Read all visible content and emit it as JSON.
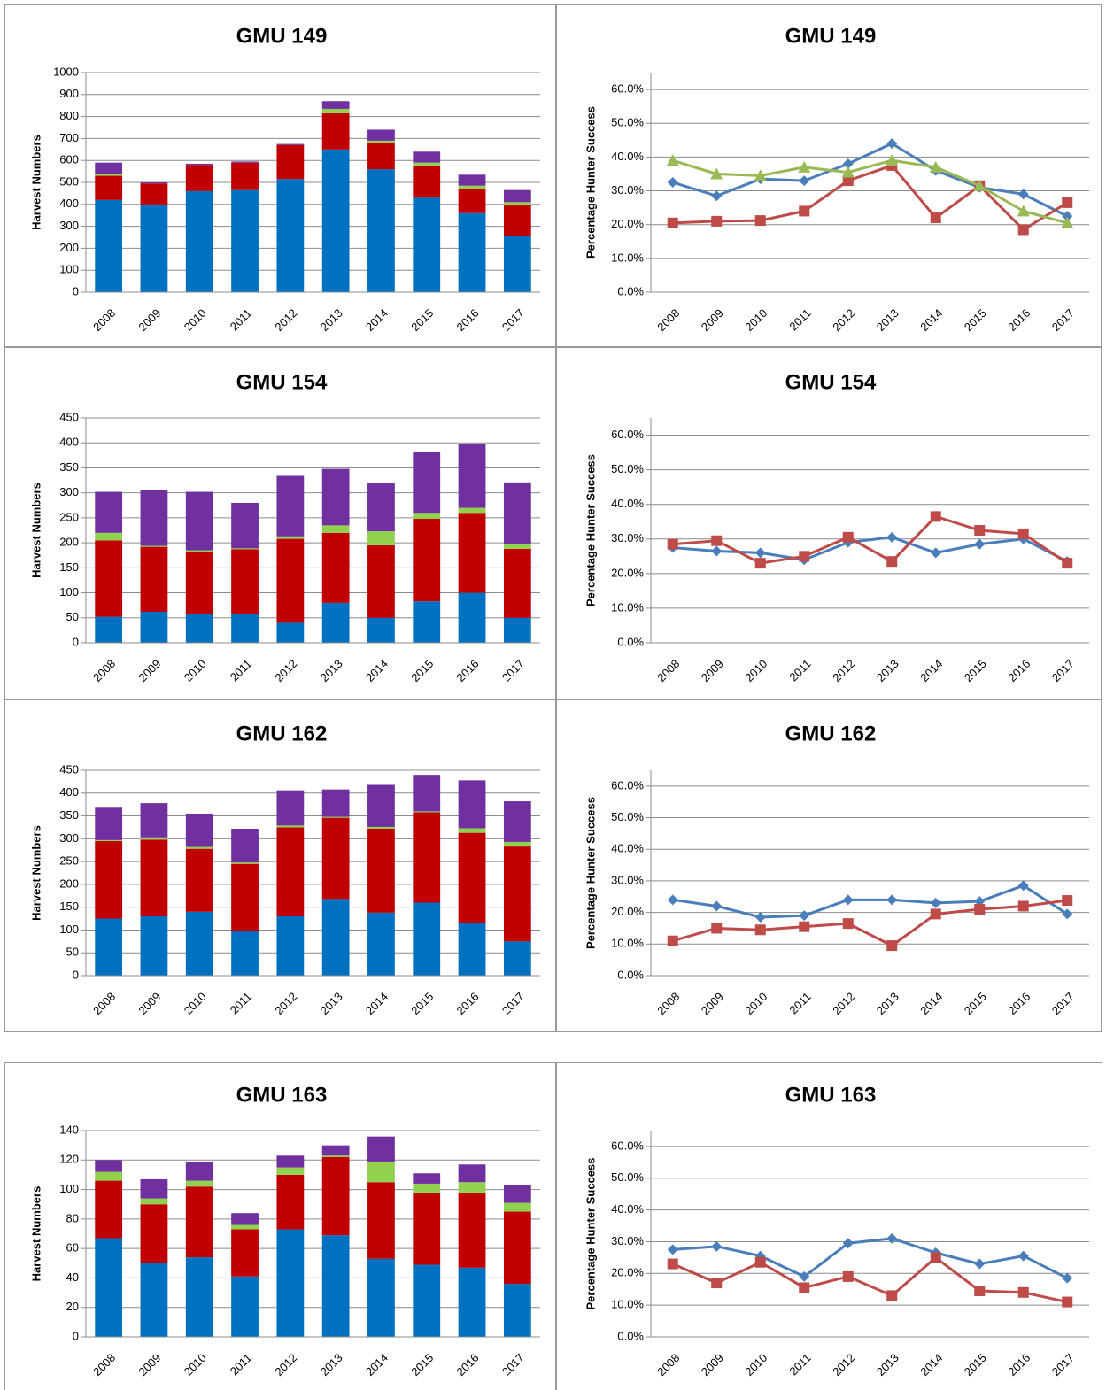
{
  "chart_data": [
    {
      "type": "bar",
      "stacked": true,
      "title": "GMU 149",
      "y_label": "Harvest Numbers",
      "categories": [
        "2008",
        "2009",
        "2010",
        "2011",
        "2012",
        "2013",
        "2014",
        "2015",
        "2016",
        "2017"
      ],
      "series": [
        {
          "color": "#0070c0",
          "values": [
            420,
            400,
            460,
            465,
            515,
            650,
            560,
            430,
            360,
            255
          ]
        },
        {
          "color": "#c00000",
          "values": [
            110,
            95,
            120,
            125,
            155,
            165,
            120,
            145,
            110,
            140
          ]
        },
        {
          "color": "#92d050",
          "values": [
            10,
            0,
            0,
            0,
            0,
            20,
            10,
            15,
            15,
            15
          ]
        },
        {
          "color": "#7030a0",
          "values": [
            50,
            5,
            5,
            5,
            5,
            35,
            50,
            50,
            50,
            55
          ]
        }
      ],
      "ylim": [
        0,
        1000
      ],
      "yticks": [
        0,
        100,
        200,
        300,
        400,
        500,
        600,
        700,
        800,
        900,
        1000
      ],
      "grid": true
    },
    {
      "type": "line",
      "title": "GMU 149",
      "y_label": "Percentage Hunter Success",
      "categories": [
        "2008",
        "2009",
        "2010",
        "2011",
        "2012",
        "2013",
        "2014",
        "2015",
        "2016",
        "2017"
      ],
      "series": [
        {
          "color": "#4a7ebb",
          "marker": "diamond",
          "values": [
            32.5,
            28.5,
            33.5,
            33,
            38,
            44,
            36,
            31,
            29,
            22.5
          ]
        },
        {
          "color": "#be4b48",
          "marker": "square",
          "values": [
            20.5,
            21,
            21.2,
            24,
            33,
            37.5,
            22,
            31.5,
            18.5,
            26.5
          ]
        },
        {
          "color": "#98b954",
          "marker": "triangle",
          "values": [
            39,
            35,
            34.5,
            37,
            35.5,
            39,
            37,
            31.5,
            24,
            20.5
          ]
        }
      ],
      "ylim": [
        0,
        65
      ],
      "yticks": [
        {
          "value": 0,
          "label": "0.0%"
        },
        {
          "value": 10,
          "label": "10.0%"
        },
        {
          "value": 20,
          "label": "20.0%"
        },
        {
          "value": 30,
          "label": "30.0%"
        },
        {
          "value": 40,
          "label": "40.0%"
        },
        {
          "value": 50,
          "label": "50.0%"
        },
        {
          "value": 60,
          "label": "60.0%"
        }
      ],
      "grid": true
    },
    {
      "type": "bar",
      "stacked": true,
      "title": "GMU 154",
      "y_label": "Harvest Numbers",
      "categories": [
        "2008",
        "2009",
        "2010",
        "2011",
        "2012",
        "2013",
        "2014",
        "2015",
        "2016",
        "2017"
      ],
      "series": [
        {
          "color": "#0070c0",
          "values": [
            52,
            62,
            58,
            58,
            40,
            80,
            50,
            83,
            100,
            50
          ]
        },
        {
          "color": "#c00000",
          "values": [
            153,
            130,
            124,
            129,
            168,
            140,
            145,
            165,
            160,
            138
          ]
        },
        {
          "color": "#92d050",
          "values": [
            15,
            2,
            3,
            2,
            5,
            15,
            28,
            12,
            10,
            10
          ]
        },
        {
          "color": "#7030a0",
          "values": [
            82,
            111,
            117,
            91,
            121,
            113,
            97,
            122,
            127,
            123
          ]
        }
      ],
      "ylim": [
        0,
        450
      ],
      "yticks": [
        0,
        50,
        100,
        150,
        200,
        250,
        300,
        350,
        400,
        450
      ],
      "grid": true
    },
    {
      "type": "line",
      "title": "GMU 154",
      "y_label": "Percentage Hunter Success",
      "categories": [
        "2008",
        "2009",
        "2010",
        "2011",
        "2012",
        "2013",
        "2014",
        "2015",
        "2016",
        "2017"
      ],
      "series": [
        {
          "color": "#4a7ebb",
          "marker": "diamond",
          "values": [
            27.5,
            26.5,
            26,
            24,
            29,
            30.5,
            26,
            28.5,
            30,
            23.5
          ]
        },
        {
          "color": "#be4b48",
          "marker": "square",
          "values": [
            28.5,
            29.5,
            23,
            25,
            30.5,
            23.5,
            36.5,
            32.5,
            31.5,
            23
          ]
        }
      ],
      "ylim": [
        0,
        65
      ],
      "yticks": [
        {
          "value": 0,
          "label": "0.0%"
        },
        {
          "value": 10,
          "label": "10.0%"
        },
        {
          "value": 20,
          "label": "20.0%"
        },
        {
          "value": 30,
          "label": "30.0%"
        },
        {
          "value": 40,
          "label": "40.0%"
        },
        {
          "value": 50,
          "label": "50.0%"
        },
        {
          "value": 60,
          "label": "60.0%"
        }
      ],
      "grid": true
    },
    {
      "type": "bar",
      "stacked": true,
      "title": "GMU 162",
      "y_label": "Harvest Numbers",
      "categories": [
        "2008",
        "2009",
        "2010",
        "2011",
        "2012",
        "2013",
        "2014",
        "2015",
        "2016",
        "2017"
      ],
      "series": [
        {
          "color": "#0070c0",
          "values": [
            125,
            130,
            140,
            97,
            130,
            168,
            138,
            160,
            115,
            75
          ]
        },
        {
          "color": "#c00000",
          "values": [
            170,
            168,
            138,
            148,
            195,
            178,
            184,
            198,
            198,
            208
          ]
        },
        {
          "color": "#92d050",
          "values": [
            2,
            5,
            4,
            3,
            4,
            2,
            4,
            2,
            10,
            10
          ]
        },
        {
          "color": "#7030a0",
          "values": [
            71,
            75,
            73,
            74,
            77,
            60,
            92,
            80,
            105,
            89
          ]
        }
      ],
      "ylim": [
        0,
        450
      ],
      "yticks": [
        0,
        50,
        100,
        150,
        200,
        250,
        300,
        350,
        400,
        450
      ],
      "grid": true
    },
    {
      "type": "line",
      "title": "GMU 162",
      "y_label": "Percentage Hunter Success",
      "categories": [
        "2008",
        "2009",
        "2010",
        "2011",
        "2012",
        "2013",
        "2014",
        "2015",
        "2016",
        "2017"
      ],
      "series": [
        {
          "color": "#4a7ebb",
          "marker": "diamond",
          "values": [
            24,
            22,
            18.5,
            19,
            24,
            24,
            23,
            23.5,
            28.5,
            19.5
          ]
        },
        {
          "color": "#be4b48",
          "marker": "square",
          "values": [
            11,
            15,
            14.5,
            15.5,
            16.5,
            9.5,
            19.5,
            21,
            22,
            23.8
          ]
        }
      ],
      "ylim": [
        0,
        65
      ],
      "yticks": [
        {
          "value": 0,
          "label": "0.0%"
        },
        {
          "value": 10,
          "label": "10.0%"
        },
        {
          "value": 20,
          "label": "20.0%"
        },
        {
          "value": 30,
          "label": "30.0%"
        },
        {
          "value": 40,
          "label": "40.0%"
        },
        {
          "value": 50,
          "label": "50.0%"
        },
        {
          "value": 60,
          "label": "60.0%"
        }
      ],
      "grid": true
    },
    {
      "type": "bar",
      "stacked": true,
      "title": "GMU 163",
      "y_label": "Harvest Numbers",
      "categories": [
        "2008",
        "2009",
        "2010",
        "2011",
        "2012",
        "2013",
        "2014",
        "2015",
        "2016",
        "2017"
      ],
      "series": [
        {
          "color": "#0070c0",
          "values": [
            67,
            50,
            54,
            41,
            73,
            69,
            53,
            49,
            47,
            36
          ]
        },
        {
          "color": "#c00000",
          "values": [
            39,
            40,
            48,
            32,
            37,
            53,
            52,
            49,
            51,
            49
          ]
        },
        {
          "color": "#92d050",
          "values": [
            6,
            4,
            4,
            3,
            5,
            1,
            14,
            6,
            7,
            6
          ]
        },
        {
          "color": "#7030a0",
          "values": [
            8,
            13,
            13,
            8,
            8,
            7,
            17,
            7,
            12,
            12
          ]
        }
      ],
      "ylim": [
        0,
        140
      ],
      "yticks": [
        0,
        20,
        40,
        60,
        80,
        100,
        120,
        140
      ],
      "grid": true
    },
    {
      "type": "line",
      "title": "GMU 163",
      "y_label": "Percentage Hunter Success",
      "categories": [
        "2008",
        "2009",
        "2010",
        "2011",
        "2012",
        "2013",
        "2014",
        "2015",
        "2016",
        "2017"
      ],
      "series": [
        {
          "color": "#4a7ebb",
          "marker": "diamond",
          "values": [
            27.5,
            28.5,
            25.5,
            19,
            29.5,
            31,
            26.5,
            23,
            25.5,
            18.5
          ]
        },
        {
          "color": "#be4b48",
          "marker": "square",
          "values": [
            23,
            17,
            23.5,
            15.5,
            19,
            13,
            25,
            14.5,
            14,
            11
          ]
        }
      ],
      "ylim": [
        0,
        65
      ],
      "yticks": [
        {
          "value": 0,
          "label": "0.0%"
        },
        {
          "value": 10,
          "label": "10.0%"
        },
        {
          "value": 20,
          "label": "20.0%"
        },
        {
          "value": 30,
          "label": "30.0%"
        },
        {
          "value": 40,
          "label": "40.0%"
        },
        {
          "value": 50,
          "label": "50.0%"
        },
        {
          "value": 60,
          "label": "60.0%"
        }
      ],
      "grid": true
    }
  ]
}
